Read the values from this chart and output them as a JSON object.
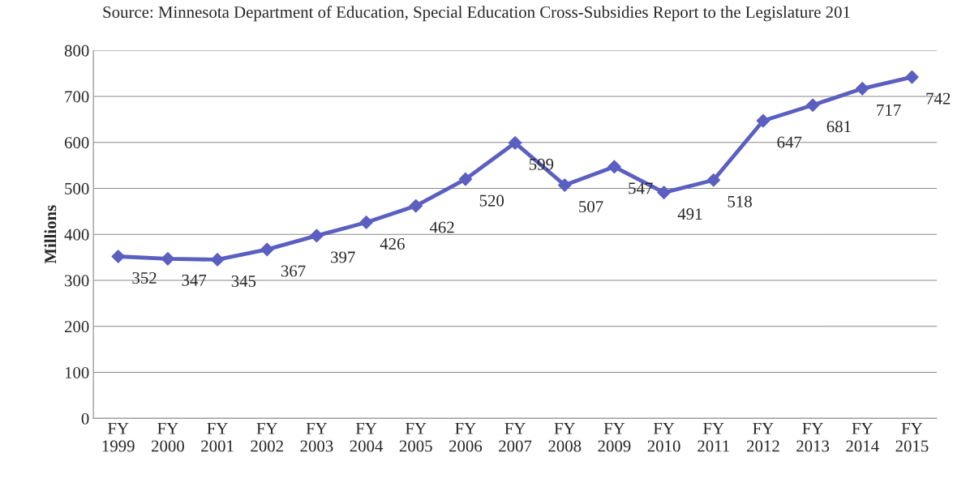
{
  "chart_data": {
    "type": "line",
    "ylabel": "Millions",
    "annotations": [
      "Source: Minnesota Department of Education, Special Education Cross-Subsidies Report to the Legislature 201"
    ],
    "categories": [
      "FY\n1999",
      "FY\n2000",
      "FY\n2001",
      "FY\n2002",
      "FY\n2003",
      "FY\n2004",
      "FY\n2005",
      "FY\n2006",
      "FY\n2007",
      "FY\n2008",
      "FY\n2009",
      "FY\n2010",
      "FY\n2011",
      "FY\n2012",
      "FY\n2013",
      "FY\n2014",
      "FY\n2015"
    ],
    "series": [
      {
        "color": "#5a5fc0",
        "values": [
          352,
          347,
          345,
          367,
          397,
          426,
          462,
          520,
          599,
          507,
          547,
          491,
          518,
          647,
          681,
          717,
          742
        ]
      }
    ],
    "ylim": [
      0,
      800
    ],
    "yticks": [
      0,
      100,
      200,
      300,
      400,
      500,
      600,
      700,
      800
    ],
    "grid": "y",
    "marker": "diamond",
    "line_style": "solid",
    "data_labels": true,
    "legend": false
  }
}
